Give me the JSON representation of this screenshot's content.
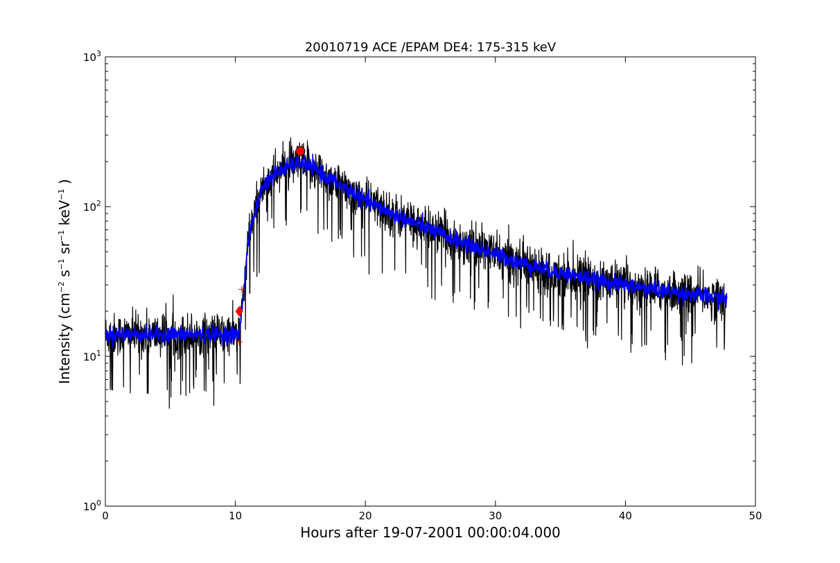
{
  "chart_data": {
    "type": "line",
    "title": "20010719 ACE /EPAM DE4: 175-315 keV",
    "xlabel": "Hours after 19-07-2001 00:00:04.000",
    "ylabel": {
      "prefix": "Intensity (cm",
      "exp1": "−2",
      "s": " s",
      "exp2": "−1",
      "sr": " sr",
      "exp3": "−1",
      "kev": " keV",
      "exp4": "−1",
      "suffix": " )"
    },
    "xlim": [
      0,
      50
    ],
    "ylim": [
      1,
      1000
    ],
    "yscale": "log",
    "grid": false,
    "x_ticks": [
      0,
      10,
      20,
      30,
      40,
      50
    ],
    "x_tick_labels": [
      "0",
      "10",
      "20",
      "30",
      "40",
      "50"
    ],
    "y_ticks": [
      {
        "base": "10",
        "exp": "0"
      },
      {
        "base": "10",
        "exp": "1"
      },
      {
        "base": "10",
        "exp": "2"
      },
      {
        "base": "10",
        "exp": "3"
      }
    ],
    "series": [
      {
        "style": "raw intensity",
        "color": "#000000",
        "x": [
          0,
          2,
          4,
          6,
          8,
          10,
          10.3,
          10.6,
          11,
          11.5,
          12,
          12.5,
          13,
          14,
          15,
          16,
          18,
          20,
          22,
          25,
          28,
          30,
          32,
          35,
          38,
          40,
          42,
          45,
          47.8
        ],
        "y": [
          14,
          14,
          14,
          14,
          14,
          14,
          14,
          25,
          60,
          90,
          130,
          150,
          165,
          185,
          195,
          180,
          140,
          110,
          90,
          70,
          55,
          48,
          42,
          36,
          32,
          30,
          28,
          26,
          24
        ]
      },
      {
        "style": "smoothed intensity",
        "color": "#0000ff",
        "x": [
          0,
          2,
          4,
          6,
          8,
          10,
          10.3,
          10.6,
          11,
          11.5,
          12,
          12.5,
          13,
          14,
          15,
          16,
          18,
          20,
          22,
          25,
          28,
          30,
          32,
          35,
          38,
          40,
          42,
          45,
          47.8
        ],
        "y": [
          14,
          14,
          14,
          14,
          14,
          14,
          14,
          25,
          60,
          90,
          130,
          150,
          165,
          185,
          195,
          180,
          140,
          110,
          90,
          70,
          55,
          48,
          42,
          36,
          32,
          30,
          28,
          26,
          24
        ]
      }
    ],
    "markers": [
      {
        "shape": "circle",
        "color": "#ff0000",
        "x": 15.0,
        "y": 235
      },
      {
        "shape": "diamond",
        "color": "#ff0000",
        "x": 10.3,
        "y": 20
      },
      {
        "shape": "plus",
        "color": "#ff0000",
        "x": 10.3,
        "y": 12.5
      },
      {
        "shape": "plus",
        "color": "#ff0000",
        "x": 10.5,
        "y": 28
      }
    ]
  }
}
